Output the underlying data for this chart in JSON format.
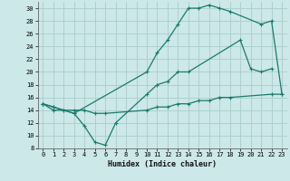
{
  "xlabel": "Humidex (Indice chaleur)",
  "bg_color": "#cce8e8",
  "grid_color": "#aacccc",
  "line_color": "#1a7a6e",
  "curve1_x": [
    0,
    1,
    2,
    3,
    10,
    11,
    12,
    13,
    14,
    15,
    16,
    17,
    18,
    21,
    22,
    23
  ],
  "curve1_y": [
    15,
    14,
    14,
    13.5,
    20,
    23,
    25,
    27.5,
    30,
    30,
    30.5,
    30,
    29.5,
    27.5,
    28,
    16.5
  ],
  "curve2_x": [
    0,
    1,
    3,
    4,
    5,
    6,
    7,
    10,
    11,
    12,
    13,
    14,
    19,
    20,
    21,
    22
  ],
  "curve2_y": [
    15,
    14.5,
    13.5,
    11.5,
    9,
    8.5,
    12,
    16.5,
    18,
    18.5,
    20,
    20,
    25,
    20.5,
    20,
    20.5
  ],
  "curve3_x": [
    0,
    1,
    2,
    3,
    4,
    5,
    6,
    10,
    11,
    12,
    13,
    14,
    15,
    16,
    17,
    18,
    22,
    23
  ],
  "curve3_y": [
    15,
    14.5,
    14,
    14,
    14,
    13.5,
    13.5,
    14,
    14.5,
    14.5,
    15,
    15,
    15.5,
    15.5,
    16,
    16,
    16.5,
    16.5
  ],
  "xlim": [
    -0.5,
    23.5
  ],
  "ylim": [
    8,
    31
  ],
  "xticks": [
    0,
    1,
    2,
    3,
    4,
    5,
    6,
    7,
    8,
    9,
    10,
    11,
    12,
    13,
    14,
    15,
    16,
    17,
    18,
    19,
    20,
    21,
    22,
    23
  ],
  "yticks": [
    8,
    10,
    12,
    14,
    16,
    18,
    20,
    22,
    24,
    26,
    28,
    30
  ]
}
